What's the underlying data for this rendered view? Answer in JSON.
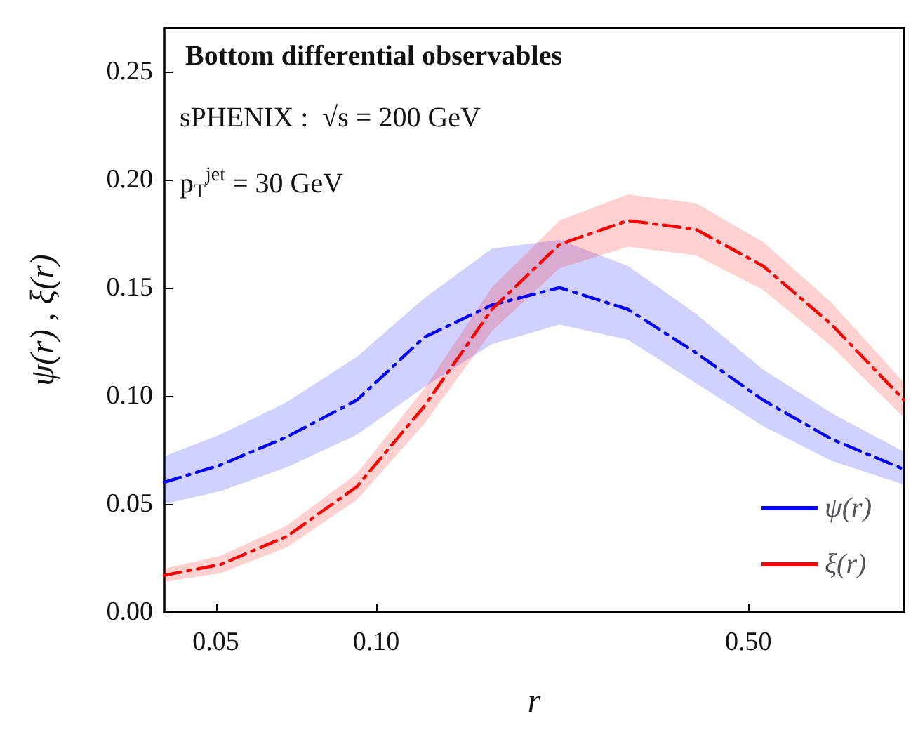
{
  "chart_data": {
    "type": "line",
    "title": "Bottom differential observables",
    "annotations": [
      "sPHENIX :  √s = 200 GeV",
      "p$_{T}$$^{jet}$ = 30 GeV"
    ],
    "xlabel": "r",
    "ylabel": "ψ(r) , ξ(r)",
    "x": [
      0.04,
      0.051,
      0.068,
      0.092,
      0.123,
      0.165,
      0.221,
      0.297,
      0.398,
      0.533,
      0.716,
      0.98
    ],
    "series": [
      {
        "name": "ψ(r)",
        "color": "#0000ff",
        "values": [
          0.06,
          0.068,
          0.081,
          0.098,
          0.127,
          0.142,
          0.15,
          0.14,
          0.12,
          0.098,
          0.08,
          0.066
        ],
        "lower": [
          0.05,
          0.056,
          0.067,
          0.082,
          0.104,
          0.124,
          0.133,
          0.126,
          0.106,
          0.086,
          0.07,
          0.059
        ],
        "upper": [
          0.072,
          0.082,
          0.097,
          0.118,
          0.145,
          0.168,
          0.172,
          0.16,
          0.138,
          0.112,
          0.092,
          0.074
        ]
      },
      {
        "name": "ξ(r)",
        "color": "#ff0000",
        "values": [
          0.017,
          0.022,
          0.035,
          0.058,
          0.095,
          0.14,
          0.17,
          0.181,
          0.177,
          0.16,
          0.133,
          0.098
        ],
        "lower": [
          0.014,
          0.018,
          0.03,
          0.052,
          0.087,
          0.13,
          0.159,
          0.169,
          0.165,
          0.149,
          0.123,
          0.09
        ],
        "upper": [
          0.02,
          0.026,
          0.04,
          0.064,
          0.103,
          0.15,
          0.181,
          0.193,
          0.189,
          0.171,
          0.143,
          0.106
        ]
      }
    ],
    "xlim": [
      0.04,
      0.98
    ],
    "xticks": [
      0.05,
      {
        "value": 0.1,
        "label": "0.10"
      },
      {
        "value": 0.5,
        "label": "0.50"
      }
    ],
    "ylim": [
      0,
      0.27
    ],
    "yticks": [
      {
        "value": 0,
        "label": "0.00"
      },
      0.05,
      {
        "value": 0.1,
        "label": "0.10"
      },
      0.15,
      {
        "value": 0.2,
        "label": "0.20"
      },
      0.25
    ],
    "log": "x",
    "legend": "bottom right",
    "line_style": "dashed",
    "marker": "none",
    "grid": false
  }
}
